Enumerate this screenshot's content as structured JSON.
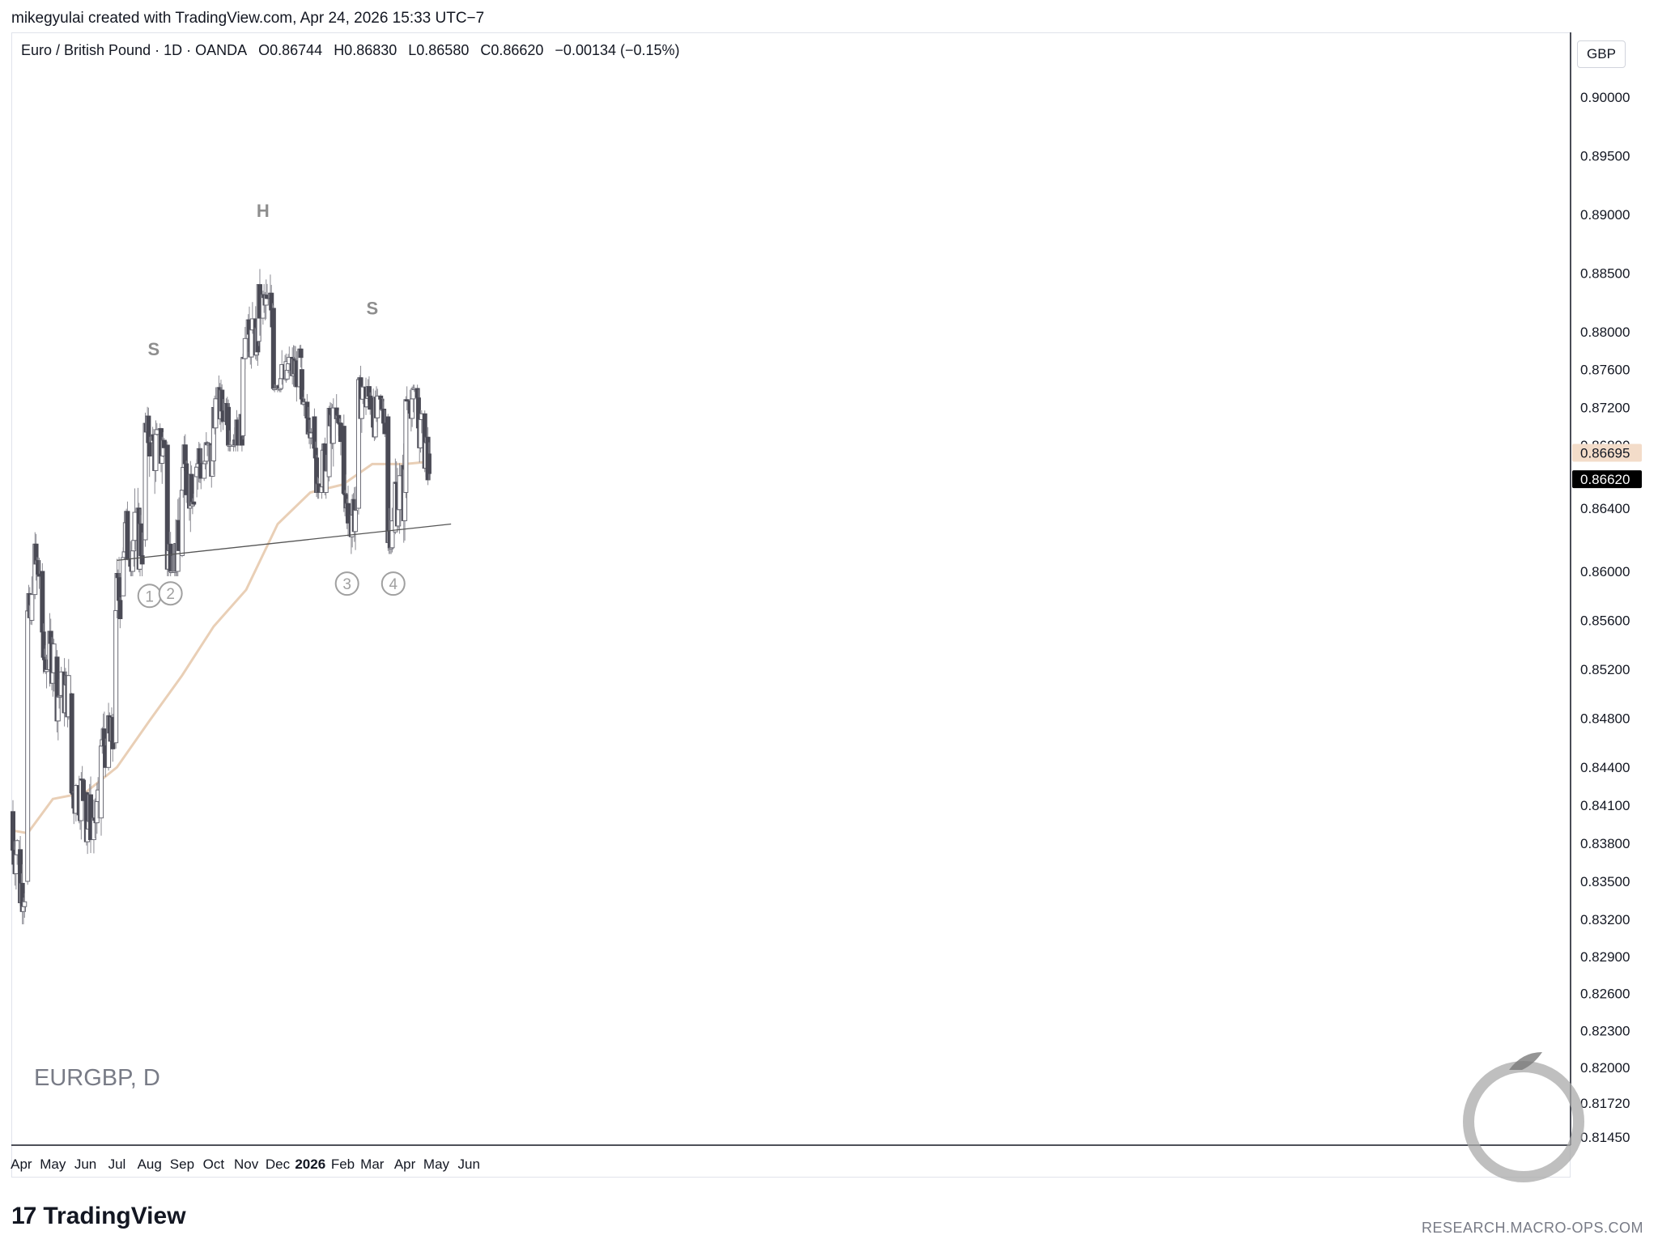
{
  "header": {
    "created_line": "mikegyulai created with TradingView.com, Apr 24, 2026 15:33 UTC−7"
  },
  "legend": {
    "instrument": "Euro / British Pound · 1D · OANDA",
    "open": "O0.86744",
    "high": "H0.86830",
    "low": "L0.86580",
    "close": "C0.86620",
    "change": "−0.00134 (−0.15%)"
  },
  "currency_label": "GBP",
  "symbol_label": "EURGBP, D",
  "brand": {
    "logo": "17",
    "name": "TradingView"
  },
  "watermark_url": "RESEARCH.MACRO-OPS.COM",
  "colors": {
    "candle_up": "#ffffff",
    "candle_down": "#4a4a55",
    "candle_outline": "#6b6b75",
    "wick": "#8a8a92",
    "ma": "#e9cfb6",
    "neckline": "#555555",
    "annotation": "#8e8e8e",
    "price_tag_ma_bg": "#f3dcc9",
    "price_tag_close_bg": "#000000"
  },
  "chart_data": {
    "type": "candlestick",
    "title": "Euro / British Pound · 1D · OANDA",
    "symbol": "EURGBP, D",
    "y_axis": {
      "ticks": [
        0.9,
        0.895,
        0.89,
        0.885,
        0.88,
        0.876,
        0.872,
        0.868,
        0.864,
        0.86,
        0.856,
        0.852,
        0.848,
        0.844,
        0.841,
        0.838,
        0.835,
        0.832,
        0.829,
        0.826,
        0.823,
        0.82,
        0.8172,
        0.8145
      ],
      "tick_labels": [
        "0.90000",
        "0.89500",
        "0.89000",
        "0.88500",
        "0.88000",
        "0.87600",
        "0.87200",
        "0.86800",
        "0.86400",
        "0.86000",
        "0.85600",
        "0.85200",
        "0.84800",
        "0.84400",
        "0.84100",
        "0.83800",
        "0.83500",
        "0.83200",
        "0.82900",
        "0.82600",
        "0.82300",
        "0.82000",
        "0.81720",
        "0.81450"
      ],
      "scale": "log",
      "range": [
        0.814,
        0.905
      ]
    },
    "x_axis": {
      "labels": [
        "Apr",
        "May",
        "Jun",
        "Jul",
        "Aug",
        "Sep",
        "Oct",
        "Nov",
        "Dec",
        "2026",
        "Feb",
        "Mar",
        "Apr",
        "May",
        "Jun"
      ],
      "bold": [
        "2026"
      ]
    },
    "price_tags": [
      {
        "label": "0.86695",
        "value": 0.86695,
        "kind": "ma"
      },
      {
        "label": "0.86620",
        "value": 0.8662,
        "kind": "close"
      }
    ],
    "ohlc_anchors": [
      {
        "date": "2025-03-24",
        "o": 0.8405,
        "h": 0.8412,
        "l": 0.837,
        "c": 0.8375
      },
      {
        "date": "2025-03-31",
        "o": 0.8375,
        "h": 0.838,
        "l": 0.832,
        "c": 0.8345
      },
      {
        "date": "2025-04-07",
        "o": 0.835,
        "h": 0.863,
        "l": 0.833,
        "c": 0.856
      },
      {
        "date": "2025-04-11",
        "o": 0.856,
        "h": 0.874,
        "l": 0.854,
        "c": 0.86
      },
      {
        "date": "2025-04-21",
        "o": 0.86,
        "h": 0.862,
        "l": 0.852,
        "c": 0.853
      },
      {
        "date": "2025-05-05",
        "o": 0.853,
        "h": 0.8545,
        "l": 0.848,
        "c": 0.85
      },
      {
        "date": "2025-05-19",
        "o": 0.85,
        "h": 0.851,
        "l": 0.841,
        "c": 0.842
      },
      {
        "date": "2025-06-02",
        "o": 0.842,
        "h": 0.844,
        "l": 0.836,
        "c": 0.84
      },
      {
        "date": "2025-06-16",
        "o": 0.84,
        "h": 0.848,
        "l": 0.839,
        "c": 0.846
      },
      {
        "date": "2025-06-30",
        "o": 0.846,
        "h": 0.859,
        "l": 0.845,
        "c": 0.858
      },
      {
        "date": "2025-07-07",
        "o": 0.858,
        "h": 0.867,
        "l": 0.86,
        "c": 0.862
      },
      {
        "date": "2025-07-28",
        "o": 0.862,
        "h": 0.876,
        "l": 0.861,
        "c": 0.869
      },
      {
        "date": "2025-08-04",
        "o": 0.869,
        "h": 0.874,
        "l": 0.864,
        "c": 0.868
      },
      {
        "date": "2025-08-18",
        "o": 0.868,
        "h": 0.869,
        "l": 0.86,
        "c": 0.861
      },
      {
        "date": "2025-09-01",
        "o": 0.861,
        "h": 0.868,
        "l": 0.8605,
        "c": 0.866
      },
      {
        "date": "2025-09-15",
        "o": 0.866,
        "h": 0.869,
        "l": 0.864,
        "c": 0.867
      },
      {
        "date": "2025-10-01",
        "o": 0.867,
        "h": 0.875,
        "l": 0.866,
        "c": 0.872
      },
      {
        "date": "2025-10-15",
        "o": 0.872,
        "h": 0.873,
        "l": 0.868,
        "c": 0.869
      },
      {
        "date": "2025-10-29",
        "o": 0.869,
        "h": 0.881,
        "l": 0.869,
        "c": 0.879
      },
      {
        "date": "2025-11-13",
        "o": 0.879,
        "h": 0.8865,
        "l": 0.878,
        "c": 0.882
      },
      {
        "date": "2025-11-27",
        "o": 0.882,
        "h": 0.883,
        "l": 0.874,
        "c": 0.875
      },
      {
        "date": "2025-12-10",
        "o": 0.875,
        "h": 0.879,
        "l": 0.874,
        "c": 0.876
      },
      {
        "date": "2025-12-24",
        "o": 0.876,
        "h": 0.8765,
        "l": 0.87,
        "c": 0.871
      },
      {
        "date": "2026-01-05",
        "o": 0.871,
        "h": 0.872,
        "l": 0.865,
        "c": 0.866
      },
      {
        "date": "2026-01-19",
        "o": 0.866,
        "h": 0.873,
        "l": 0.865,
        "c": 0.87
      },
      {
        "date": "2026-02-01",
        "o": 0.87,
        "h": 0.871,
        "l": 0.8615,
        "c": 0.864
      },
      {
        "date": "2026-02-14",
        "o": 0.864,
        "h": 0.874,
        "l": 0.864,
        "c": 0.873
      },
      {
        "date": "2026-03-02",
        "o": 0.873,
        "h": 0.879,
        "l": 0.87,
        "c": 0.871
      },
      {
        "date": "2026-03-16",
        "o": 0.871,
        "h": 0.872,
        "l": 0.8615,
        "c": 0.8625
      },
      {
        "date": "2026-03-23",
        "o": 0.8625,
        "h": 0.866,
        "l": 0.8615,
        "c": 0.865
      },
      {
        "date": "2026-04-02",
        "o": 0.865,
        "h": 0.874,
        "l": 0.8645,
        "c": 0.873
      },
      {
        "date": "2026-04-14",
        "o": 0.873,
        "h": 0.8735,
        "l": 0.869,
        "c": 0.87
      },
      {
        "date": "2026-04-24",
        "o": 0.86744,
        "h": 0.8683,
        "l": 0.8658,
        "c": 0.8662
      }
    ],
    "ma_200": [
      {
        "date": "2025-03-24",
        "v": 0.839
      },
      {
        "date": "2025-04-07",
        "v": 0.8388
      },
      {
        "date": "2025-05-01",
        "v": 0.8415
      },
      {
        "date": "2025-06-01",
        "v": 0.842
      },
      {
        "date": "2025-07-01",
        "v": 0.844
      },
      {
        "date": "2025-08-01",
        "v": 0.8478
      },
      {
        "date": "2025-09-01",
        "v": 0.8515
      },
      {
        "date": "2025-10-01",
        "v": 0.8555
      },
      {
        "date": "2025-11-01",
        "v": 0.8585
      },
      {
        "date": "2025-12-01",
        "v": 0.863
      },
      {
        "date": "2026-01-01",
        "v": 0.865
      },
      {
        "date": "2026-02-01",
        "v": 0.8655
      },
      {
        "date": "2026-03-01",
        "v": 0.8668
      },
      {
        "date": "2026-04-01",
        "v": 0.8668
      },
      {
        "date": "2026-04-24",
        "v": 0.86695
      }
    ],
    "neckline": {
      "from": {
        "date": "2025-07-01",
        "v": 0.8607
      },
      "to": {
        "date": "2026-05-15",
        "v": 0.863
      }
    },
    "annotations": [
      {
        "text": "S",
        "date": "2025-08-05",
        "v": 0.8775
      },
      {
        "text": "H",
        "date": "2025-11-17",
        "v": 0.8898
      },
      {
        "text": "S",
        "date": "2026-03-01",
        "v": 0.8815
      },
      {
        "text": "1",
        "date": "2025-08-01",
        "v": 0.858,
        "circled": true
      },
      {
        "text": "2",
        "date": "2025-08-21",
        "v": 0.8582,
        "circled": true
      },
      {
        "text": "3",
        "date": "2026-02-05",
        "v": 0.859,
        "circled": true
      },
      {
        "text": "4",
        "date": "2026-03-21",
        "v": 0.859,
        "circled": true
      }
    ]
  }
}
